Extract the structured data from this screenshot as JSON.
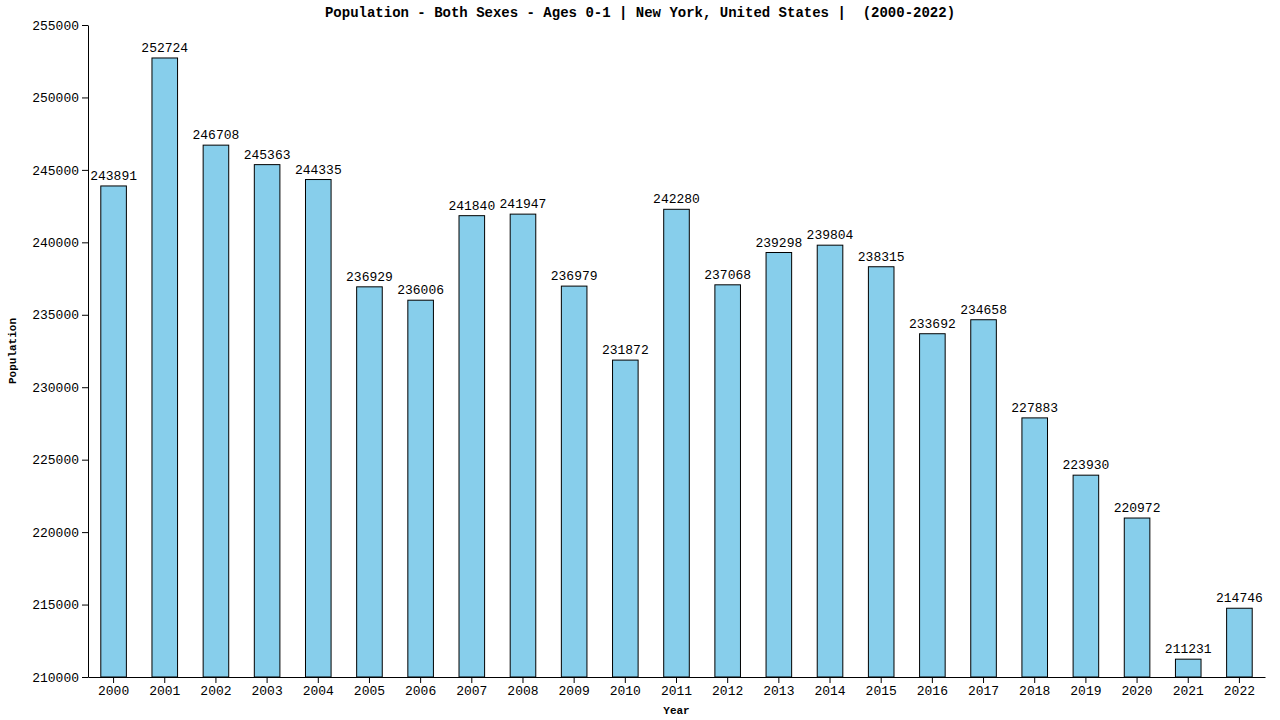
{
  "chart_data": {
    "type": "bar",
    "title": "Population - Both Sexes - Ages 0-1 | New York, United States |  (2000-2022)",
    "x_label": "Year",
    "y_label": "Population",
    "categories": [
      "2000",
      "2001",
      "2002",
      "2003",
      "2004",
      "2005",
      "2006",
      "2007",
      "2008",
      "2009",
      "2010",
      "2011",
      "2012",
      "2013",
      "2014",
      "2015",
      "2016",
      "2017",
      "2018",
      "2019",
      "2020",
      "2021",
      "2022"
    ],
    "values": [
      243891,
      252724,
      246708,
      245363,
      244335,
      236929,
      236006,
      241840,
      241947,
      236979,
      231872,
      242280,
      237068,
      239298,
      239804,
      238315,
      233692,
      234658,
      227883,
      223930,
      220972,
      211231,
      214746
    ],
    "color": "#87ceeb",
    "ylim": [
      210000,
      255000
    ],
    "yticks": [
      210000,
      215000,
      220000,
      225000,
      230000,
      235000,
      240000,
      245000,
      250000,
      255000
    ],
    "grid": false,
    "data_labels": true
  }
}
